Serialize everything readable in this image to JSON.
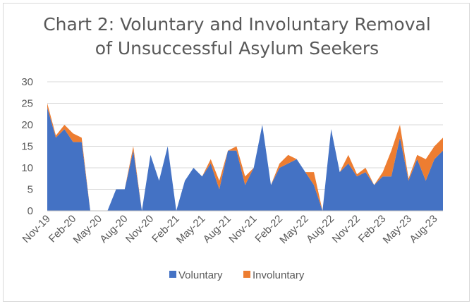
{
  "chart_data": {
    "type": "area",
    "stacked": true,
    "title_line1": "Chart 2: Voluntary and Involuntary Removal",
    "title_line2": "of Unsuccessful Asylum Seekers",
    "xlabel": "",
    "ylabel": "",
    "ylim": [
      0,
      30
    ],
    "yticks": [
      0,
      5,
      10,
      15,
      20,
      25,
      30
    ],
    "grid": true,
    "legend_position": "bottom",
    "x_tick_labels": [
      "Nov-19",
      "Feb-20",
      "May-20",
      "Aug-20",
      "Nov-20",
      "Feb-21",
      "May-21",
      "Aug-21",
      "Nov-21",
      "Feb-22",
      "May-22",
      "Aug-22",
      "Nov-22",
      "Feb-23",
      "May-23",
      "Aug-23"
    ],
    "categories": [
      "Nov-19",
      "Dec-19",
      "Jan-20",
      "Feb-20",
      "Mar-20",
      "Apr-20",
      "May-20",
      "Jun-20",
      "Jul-20",
      "Aug-20",
      "Sep-20",
      "Oct-20",
      "Nov-20",
      "Dec-20",
      "Jan-21",
      "Feb-21",
      "Mar-21",
      "Apr-21",
      "May-21",
      "Jun-21",
      "Jul-21",
      "Aug-21",
      "Sep-21",
      "Oct-21",
      "Nov-21",
      "Dec-21",
      "Jan-22",
      "Feb-22",
      "Mar-22",
      "Apr-22",
      "May-22",
      "Jun-22",
      "Jul-22",
      "Aug-22",
      "Sep-22",
      "Oct-22",
      "Nov-22",
      "Dec-22",
      "Jan-23",
      "Feb-23",
      "Mar-23",
      "Apr-23",
      "May-23",
      "Jun-23",
      "Jul-23",
      "Aug-23",
      "Sep-23"
    ],
    "series": [
      {
        "name": "Voluntary",
        "color": "#4472c4",
        "values": [
          24,
          17,
          19,
          16,
          16,
          0,
          0,
          0,
          5,
          5,
          14,
          0,
          13,
          7,
          15,
          0,
          7,
          10,
          8,
          11,
          5,
          14,
          14,
          6,
          10,
          20,
          6,
          10,
          11,
          12,
          9,
          6,
          0,
          19,
          9,
          11,
          8,
          9,
          6,
          8,
          8,
          17,
          7,
          12,
          7,
          12,
          14
        ]
      },
      {
        "name": "Involuntary",
        "color": "#ed7d31",
        "values": [
          1,
          0.5,
          1,
          2,
          1,
          0,
          0,
          0,
          0,
          0,
          1,
          0,
          0,
          0,
          0,
          0,
          0,
          0,
          0,
          1,
          2,
          0,
          1,
          2,
          0,
          0,
          0,
          1,
          2,
          0,
          0,
          3,
          0,
          0,
          0,
          2,
          0.5,
          1,
          0,
          1,
          6,
          3,
          0.5,
          1,
          5,
          3,
          3
        ]
      }
    ]
  }
}
